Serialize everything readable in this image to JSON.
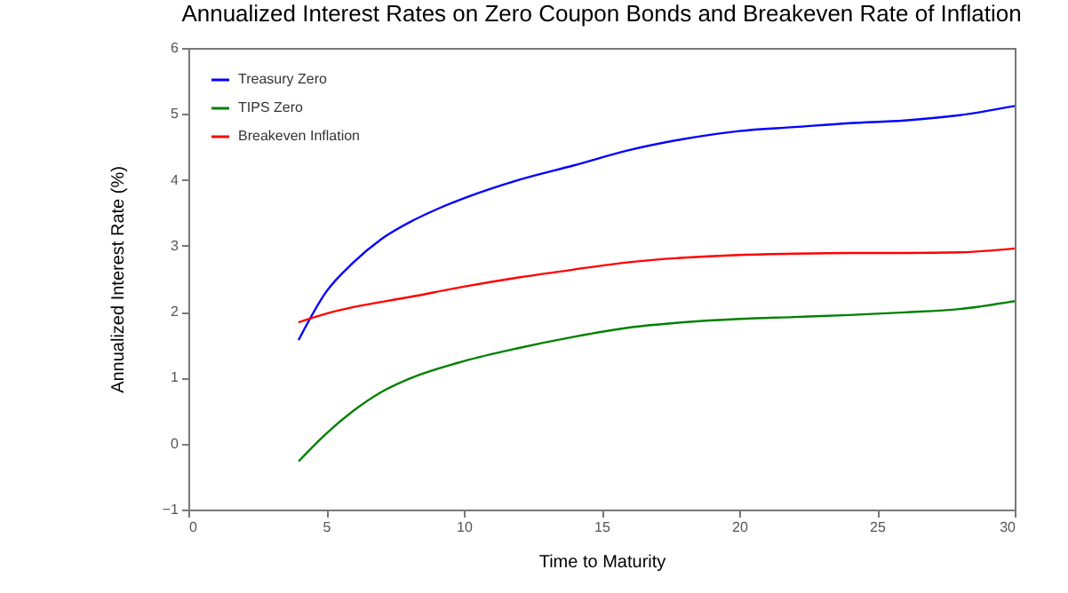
{
  "chart_data": {
    "type": "line",
    "title": "Annualized Interest Rates on Zero Coupon Bonds and Breakeven Rate of Inflation",
    "xlabel": "Time to Maturity",
    "ylabel": "Annualized Interest Rate (%)",
    "xlim": [
      0,
      30
    ],
    "xticks": [
      0,
      5,
      10,
      15,
      20,
      25,
      30
    ],
    "ylim": [
      -1,
      6
    ],
    "yticks": [
      -1,
      0,
      1,
      2,
      3,
      4,
      5,
      6
    ],
    "grid": false,
    "legend": "top left",
    "marker": "none",
    "line_style": "solid",
    "series": [
      {
        "name": "Treasury Zero",
        "color": "#0000ff",
        "x": [
          4,
          5,
          6,
          7,
          8,
          9,
          10,
          12,
          14,
          16,
          18,
          20,
          22,
          24,
          26,
          28,
          30
        ],
        "values": [
          1.57,
          2.3,
          2.75,
          3.1,
          3.35,
          3.55,
          3.72,
          4.0,
          4.22,
          4.45,
          4.62,
          4.74,
          4.8,
          4.86,
          4.9,
          4.98,
          5.12
        ]
      },
      {
        "name": "TIPS Zero",
        "color": "#008000",
        "x": [
          4,
          5,
          6,
          7,
          8,
          10,
          12,
          14,
          16,
          18,
          20,
          22,
          24,
          26,
          28,
          30
        ],
        "values": [
          -0.27,
          0.15,
          0.5,
          0.78,
          0.98,
          1.25,
          1.45,
          1.62,
          1.76,
          1.84,
          1.89,
          1.92,
          1.95,
          1.99,
          2.04,
          2.16
        ]
      },
      {
        "name": "Breakeven Inflation",
        "color": "#ff0000",
        "x": [
          4,
          5,
          6,
          8,
          10,
          12,
          14,
          16,
          18,
          20,
          22,
          24,
          26,
          28,
          30
        ],
        "values": [
          1.84,
          1.97,
          2.07,
          2.22,
          2.38,
          2.52,
          2.64,
          2.75,
          2.82,
          2.86,
          2.88,
          2.89,
          2.89,
          2.9,
          2.96
        ]
      }
    ]
  }
}
